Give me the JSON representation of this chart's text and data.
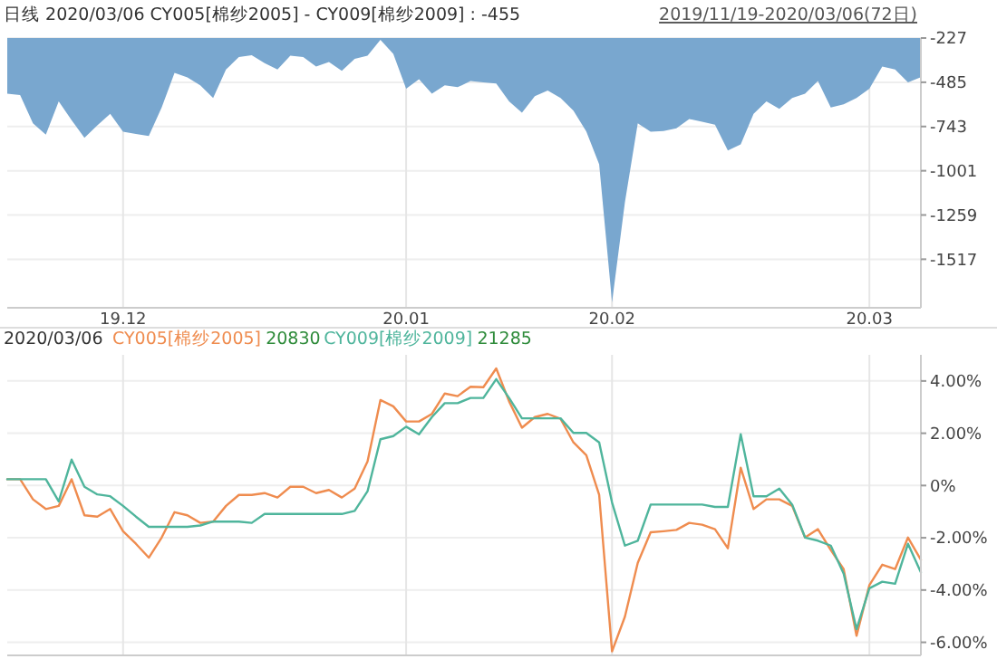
{
  "chart_data": [
    {
      "type": "area",
      "title": "日线 2020/03/06 CY005[棉纱2005] - CY009[棉纱2009] : -455",
      "annotations": [
        "2019/11/19-2020/03/06(72日)"
      ],
      "categories": [
        null,
        null,
        null,
        null,
        null,
        null,
        null,
        null,
        null,
        "19.12",
        null,
        null,
        null,
        null,
        null,
        null,
        null,
        null,
        null,
        null,
        null,
        null,
        null,
        null,
        null,
        null,
        null,
        null,
        null,
        null,
        null,
        "20.01",
        null,
        null,
        null,
        null,
        null,
        null,
        null,
        null,
        null,
        null,
        null,
        null,
        null,
        null,
        null,
        "20.02",
        null,
        null,
        null,
        null,
        null,
        null,
        null,
        null,
        null,
        null,
        null,
        null,
        null,
        null,
        null,
        null,
        null,
        null,
        null,
        "20.03",
        null,
        null,
        null,
        null
      ],
      "series": [
        {
          "color": "#79a7cf",
          "values": [
            -551,
            -559,
            -725,
            -791,
            -596,
            -706,
            -809,
            -736,
            -669,
            -773,
            -787,
            -798,
            -632,
            -430,
            -456,
            -503,
            -577,
            -411,
            -338,
            -327,
            -374,
            -411,
            -330,
            -338,
            -393,
            -367,
            -419,
            -349,
            -330,
            -238,
            -319,
            -522,
            -467,
            -551,
            -503,
            -514,
            -478,
            -485,
            -492,
            -596,
            -662,
            -566,
            -533,
            -577,
            -651,
            -772,
            -964,
            -1768,
            -1185,
            -725,
            -773,
            -769,
            -754,
            -699,
            -715,
            -732,
            -883,
            -847,
            -669,
            -596,
            -640,
            -577,
            -551,
            -478,
            -632,
            -613,
            -577,
            -522,
            -393,
            -411,
            -485,
            -455
          ]
        }
      ],
      "ylim": [
        -1800,
        -227
      ],
      "yticks": [
        -227,
        -485,
        -743,
        -1001,
        -1259,
        -1517
      ],
      "grid": true
    },
    {
      "type": "line",
      "title": "2020/03/06",
      "annotations": [
        "20830",
        "21285"
      ],
      "legend": "top left",
      "tick_labels": "y",
      "categories": [
        null,
        null,
        null,
        null,
        null,
        null,
        null,
        null,
        null,
        "19.12",
        null,
        null,
        null,
        null,
        null,
        null,
        null,
        null,
        null,
        null,
        null,
        null,
        null,
        null,
        null,
        null,
        null,
        null,
        null,
        null,
        null,
        "20.01",
        null,
        null,
        null,
        null,
        null,
        null,
        null,
        null,
        null,
        null,
        null,
        null,
        null,
        null,
        null,
        "20.02",
        null,
        null,
        null,
        null,
        null,
        null,
        null,
        null,
        null,
        null,
        null,
        null,
        null,
        null,
        null,
        null,
        null,
        null,
        null,
        "20.03",
        null,
        null,
        null,
        null
      ],
      "series": [
        {
          "name": "CY005[棉纱2005]",
          "color": "#ef8c4f",
          "values": [
            0.24,
            0.24,
            -0.53,
            -0.9,
            -0.78,
            0.24,
            -1.14,
            -1.19,
            -0.9,
            -1.75,
            -2.23,
            -2.76,
            -1.99,
            -1.02,
            -1.14,
            -1.43,
            -1.38,
            -0.78,
            -0.36,
            -0.36,
            -0.29,
            -0.46,
            -0.05,
            -0.05,
            -0.29,
            -0.17,
            -0.46,
            -0.12,
            0.92,
            3.27,
            3.03,
            2.45,
            2.45,
            2.74,
            3.52,
            3.42,
            3.78,
            3.76,
            4.48,
            3.22,
            2.21,
            2.62,
            2.74,
            2.55,
            1.65,
            1.16,
            -0.36,
            -6.35,
            -5.02,
            -2.96,
            -1.79,
            -1.75,
            -1.7,
            -1.43,
            -1.5,
            -1.67,
            -2.4,
            0.68,
            -0.9,
            -0.53,
            -0.53,
            -0.78,
            -1.99,
            -1.67,
            -2.47,
            -3.2,
            -5.75,
            -3.81,
            -3.03,
            -3.2,
            -1.99,
            -2.84
          ]
        },
        {
          "name": "CY009[棉纱2009]",
          "color": "#4fb59c",
          "values": [
            0.24,
            0.24,
            0.24,
            0.24,
            -0.61,
            0.99,
            -0.05,
            -0.34,
            -0.41,
            -0.78,
            -1.19,
            -1.58,
            -1.58,
            -1.58,
            -1.58,
            -1.53,
            -1.38,
            -1.38,
            -1.38,
            -1.43,
            -1.09,
            -1.09,
            -1.09,
            -1.09,
            -1.09,
            -1.09,
            -1.09,
            -0.97,
            -0.22,
            1.77,
            1.89,
            2.25,
            1.96,
            2.62,
            3.15,
            3.15,
            3.35,
            3.35,
            4.07,
            3.35,
            2.57,
            2.57,
            2.57,
            2.57,
            2.01,
            2.01,
            1.65,
            -0.65,
            -2.3,
            -2.11,
            -0.73,
            -0.73,
            -0.73,
            -0.73,
            -0.73,
            -0.82,
            -0.82,
            1.96,
            -0.41,
            -0.41,
            -0.12,
            -0.73,
            -1.99,
            -2.11,
            -2.3,
            -3.37,
            -5.5,
            -3.93,
            -3.68,
            -3.76,
            -2.23,
            -3.32
          ]
        }
      ],
      "ylim": [
        -6.5,
        5
      ],
      "yticks": [
        {
          "value": 4,
          "label": "4.00%"
        },
        {
          "value": 2,
          "label": "2.00%"
        },
        {
          "value": 0,
          "label": "0%"
        },
        {
          "value": -2,
          "label": "-2.00%"
        },
        {
          "value": -4,
          "label": "-4.00%"
        },
        {
          "value": -6,
          "label": "-6.00%"
        }
      ],
      "grid": true
    }
  ]
}
